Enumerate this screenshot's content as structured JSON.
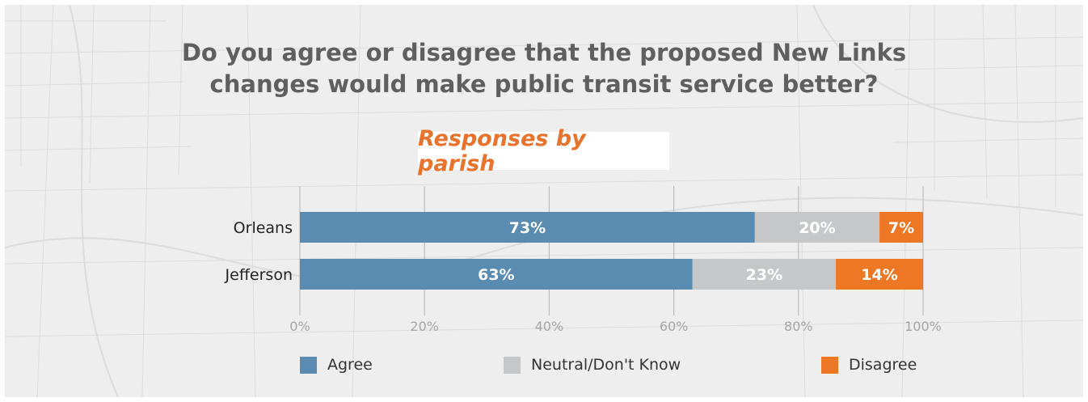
{
  "title_lines": [
    "Do you agree or disagree that the proposed New Links",
    "changes would make public transit service better?"
  ],
  "subtitle": "Responses by parish",
  "colors": {
    "agree": "#5a8bb0",
    "neutral": "#c6c7c9",
    "disagree": "#ee7726",
    "grid": "#bcbcbc",
    "tick": "#a5a5a5",
    "category": "#222222"
  },
  "legend": [
    {
      "label": "Agree",
      "color": "#5a8bb0"
    },
    {
      "label": "Neutral/Don't Know",
      "color": "#c6c7c9"
    },
    {
      "label": "Disagree",
      "color": "#ee7726"
    }
  ],
  "chart_data": {
    "type": "bar",
    "orientation": "horizontal",
    "stacked": true,
    "title": "Do you agree or disagree that the proposed New Links changes would make public transit service better?",
    "subtitle": "Responses by parish",
    "categories": [
      "Orleans",
      "Jefferson"
    ],
    "series": [
      {
        "name": "Agree",
        "values": [
          73,
          63
        ],
        "labels": [
          "73%",
          "63%"
        ]
      },
      {
        "name": "Neutral/Don't Know",
        "values": [
          20,
          23
        ],
        "labels": [
          "20%",
          "23%"
        ]
      },
      {
        "name": "Disagree",
        "values": [
          7,
          14
        ],
        "labels": [
          "7%",
          "14%"
        ]
      }
    ],
    "xlim": [
      0,
      100
    ],
    "xticks": [
      0,
      20,
      40,
      60,
      80,
      100
    ],
    "xtick_labels": [
      "0%",
      "20%",
      "40%",
      "60%",
      "80%",
      "100%"
    ],
    "grid": true,
    "legend_position": "bottom"
  }
}
